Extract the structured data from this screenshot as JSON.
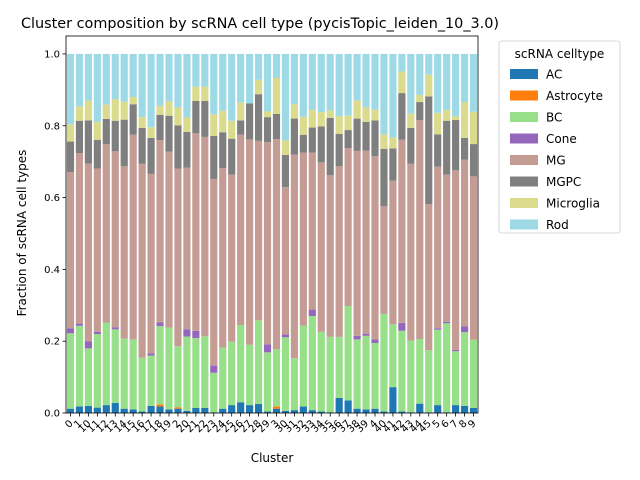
{
  "chart_data": {
    "type": "bar",
    "stacked": true,
    "title": "Cluster composition by scRNA cell type (pycisTopic_leiden_10_3.0)",
    "xlabel": "Cluster",
    "ylabel": "Fraction of scRNA cell types",
    "ylim": [
      0,
      1.05
    ],
    "yticks": [
      "0.0",
      "0.2",
      "0.4",
      "0.6",
      "0.8",
      "1.0"
    ],
    "grid": false,
    "legend": {
      "title": "scRNA celltype",
      "placement": "outside-right-top"
    },
    "categories": [
      "0",
      "1",
      "10",
      "11",
      "12",
      "13",
      "14",
      "15",
      "16",
      "17",
      "18",
      "19",
      "2",
      "20",
      "21",
      "22",
      "23",
      "24",
      "25",
      "26",
      "27",
      "28",
      "29",
      "3",
      "30",
      "31",
      "32",
      "33",
      "34",
      "35",
      "36",
      "37",
      "38",
      "39",
      "4",
      "40",
      "41",
      "42",
      "43",
      "44",
      "45",
      "5",
      "6",
      "7",
      "8",
      "9"
    ],
    "tick_labels": [
      "0",
      "1",
      "10",
      "11",
      "12",
      "13",
      "14",
      "15",
      "16",
      "17",
      "18",
      "19",
      "2",
      "20",
      "21",
      "22",
      "23",
      "24",
      "25",
      "26",
      "27",
      "28",
      "29",
      "3",
      "30",
      "31",
      "32",
      "33",
      "34",
      "35",
      "36",
      "37",
      "38",
      "39",
      "4",
      "40",
      "41",
      "42",
      "43",
      "44",
      "45",
      "5",
      "6",
      "7",
      "8",
      "9"
    ],
    "series": [
      {
        "name": "AC",
        "color": "#1f77b4",
        "values": [
          0.012,
          0.018,
          0.02,
          0.015,
          0.022,
          0.028,
          0.012,
          0.01,
          0.004,
          0.02,
          0.018,
          0.01,
          0.012,
          0.006,
          0.014,
          0.014,
          0.002,
          0.012,
          0.022,
          0.03,
          0.022,
          0.025,
          0.004,
          0.012,
          0.006,
          0.008,
          0.018,
          0.008,
          0.004,
          0.002,
          0.042,
          0.035,
          0.012,
          0.01,
          0.012,
          0.004,
          0.072,
          0.004,
          0.002,
          0.026,
          0.002,
          0.022,
          0.002,
          0.022,
          0.02,
          0.014
        ]
      },
      {
        "name": "Astrocyte",
        "color": "#ff7f0e",
        "values": [
          0,
          0,
          0,
          0,
          0,
          0,
          0,
          0,
          0,
          0,
          0.006,
          0,
          0.004,
          0,
          0,
          0,
          0,
          0,
          0,
          0,
          0,
          0,
          0,
          0.006,
          0,
          0,
          0,
          0,
          0,
          0,
          0,
          0,
          0,
          0,
          0,
          0,
          0,
          0,
          0,
          0,
          0,
          0,
          0,
          0,
          0,
          0
        ]
      },
      {
        "name": "BC",
        "color": "#98df8a",
        "values": [
          0.21,
          0.225,
          0.16,
          0.205,
          0.23,
          0.205,
          0.195,
          0.195,
          0.15,
          0.14,
          0.218,
          0.228,
          0.17,
          0.207,
          0.195,
          0.2,
          0.11,
          0.17,
          0.177,
          0.215,
          0.168,
          0.233,
          0.165,
          0.16,
          0.205,
          0.145,
          0.225,
          0.262,
          0.222,
          0.21,
          0.17,
          0.263,
          0.193,
          0.205,
          0.183,
          0.272,
          0.175,
          0.225,
          0.2,
          0.18,
          0.173,
          0.21,
          0.248,
          0.15,
          0.205,
          0.19
        ]
      },
      {
        "name": "Cone",
        "color": "#9467bd",
        "values": [
          0.014,
          0.006,
          0.02,
          0.006,
          0,
          0.006,
          0,
          0,
          0,
          0.006,
          0.01,
          0,
          0,
          0.02,
          0.02,
          0,
          0.02,
          0,
          0,
          0,
          0,
          0,
          0.022,
          0,
          0.008,
          0,
          0,
          0.018,
          0,
          0,
          0,
          0,
          0.01,
          0.006,
          0.01,
          0,
          0,
          0.022,
          0,
          0,
          0,
          0.004,
          0.004,
          0.004,
          0.016,
          0
        ]
      },
      {
        "name": "MG",
        "color": "#c49c94",
        "values": [
          0.435,
          0.475,
          0.495,
          0.455,
          0.497,
          0.49,
          0.48,
          0.57,
          0.54,
          0.5,
          0.508,
          0.49,
          0.495,
          0.45,
          0.55,
          0.555,
          0.52,
          0.5,
          0.465,
          0.53,
          0.572,
          0.5,
          0.563,
          0.585,
          0.41,
          0.567,
          0.482,
          0.437,
          0.472,
          0.45,
          0.475,
          0.44,
          0.515,
          0.51,
          0.51,
          0.3,
          0.4,
          0.51,
          0.492,
          0.61,
          0.407,
          0.45,
          0.41,
          0.5,
          0.465,
          0.455
        ]
      },
      {
        "name": "MGPC",
        "color": "#7f7f7f",
        "values": [
          0.085,
          0.09,
          0.12,
          0.08,
          0.07,
          0.085,
          0.13,
          0.085,
          0.1,
          0.1,
          0.07,
          0.1,
          0.12,
          0.1,
          0.09,
          0.1,
          0.12,
          0.1,
          0.1,
          0.04,
          0.1,
          0.13,
          0.07,
          0.07,
          0.09,
          0.1,
          0.05,
          0.07,
          0.1,
          0.16,
          0.09,
          0.05,
          0.09,
          0.08,
          0.1,
          0.16,
          0.09,
          0.13,
          0.1,
          0.05,
          0.3,
          0.09,
          0.15,
          0.14,
          0.06,
          0.09
        ]
      },
      {
        "name": "Microglia",
        "color": "#dbdb8d",
        "values": [
          0.048,
          0.04,
          0.055,
          0.05,
          0.04,
          0.06,
          0.05,
          0.02,
          0.03,
          0.03,
          0.026,
          0.04,
          0.05,
          0.04,
          0.04,
          0.04,
          0.06,
          0.06,
          0.05,
          0.05,
          0.0,
          0.04,
          0.016,
          0.1,
          0.04,
          0.04,
          0.05,
          0.05,
          0.04,
          0.02,
          0.05,
          0.04,
          0.05,
          0.04,
          0.03,
          0.04,
          0.03,
          0.06,
          0.04,
          0.02,
          0.06,
          0.06,
          0.03,
          0.01,
          0.1,
          0.09
        ]
      },
      {
        "name": "Rod",
        "color": "#9edae5",
        "values": [
          0.196,
          0.146,
          0.13,
          0.189,
          0.141,
          0.126,
          0.133,
          0.12,
          0.176,
          0.204,
          0.144,
          0.132,
          0.149,
          0.177,
          0.091,
          0.091,
          0.168,
          0.158,
          0.186,
          0.135,
          0.138,
          0.072,
          0.16,
          0.067,
          0.241,
          0.14,
          0.175,
          0.155,
          0.162,
          0.158,
          0.173,
          0.172,
          0.13,
          0.149,
          0.155,
          0.224,
          0.233,
          0.049,
          0.166,
          0.114,
          0.058,
          0.164,
          0.156,
          0.174,
          0.134,
          0.161
        ]
      }
    ]
  }
}
